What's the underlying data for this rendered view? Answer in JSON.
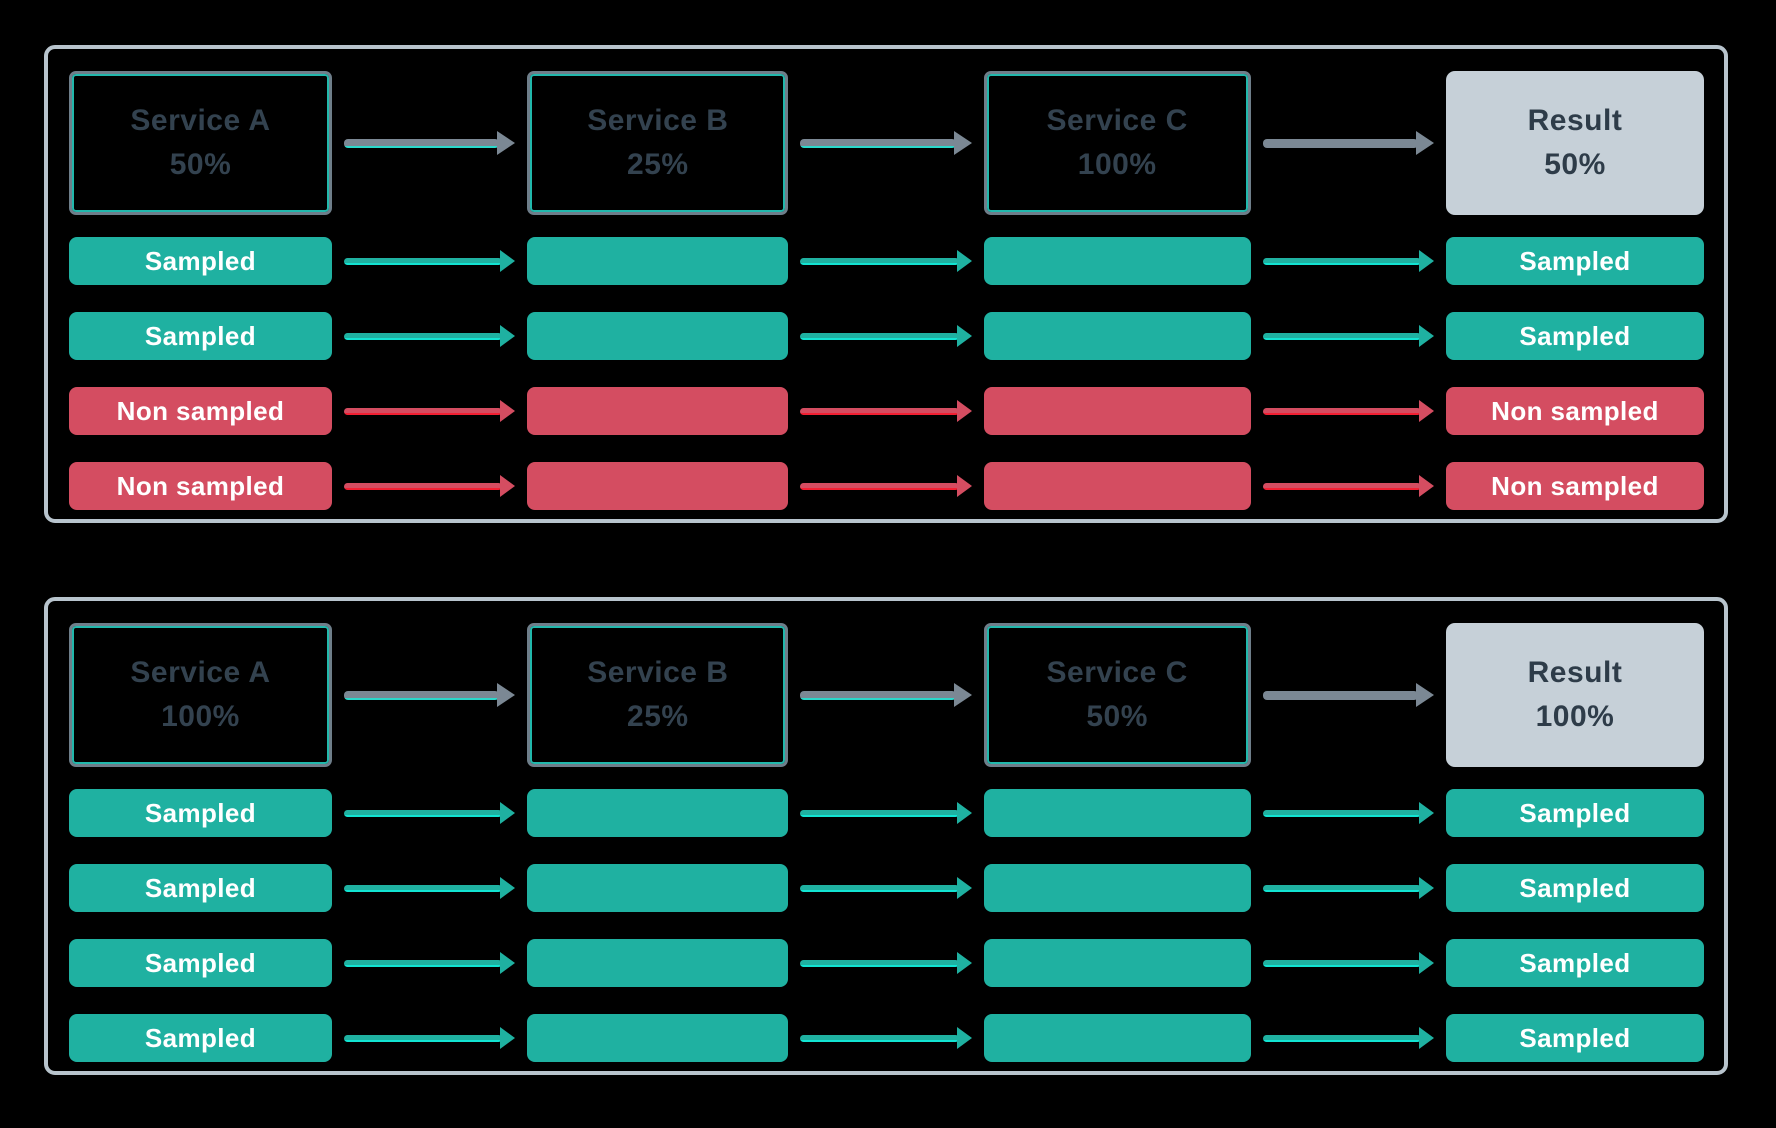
{
  "colors": {
    "background": "#000000",
    "panel_border": "#B8C4CD",
    "service_box_border": "#6E7E8A",
    "service_box_inner_accent": "#27D8CA",
    "service_text": "#33424F",
    "result_background": "#C6D0D8",
    "result_text": "#2E3C49",
    "sampled_teal": "#1FB1A1",
    "non_sampled_red": "#D44D61",
    "arrow_gray": "#7B8894",
    "teal_accent_line": "#12E4D2",
    "red_accent_line": "#F31F32",
    "pill_text": "#FFFFFF"
  },
  "panels": [
    {
      "services": [
        {
          "title": "Service A",
          "rate": "50%"
        },
        {
          "title": "Service B",
          "rate": "25%"
        },
        {
          "title": "Service C",
          "rate": "100%"
        }
      ],
      "result": {
        "title": "Result",
        "rate": "50%"
      },
      "rows": [
        {
          "type": "sampled",
          "left_label": "Sampled",
          "right_label": "Sampled"
        },
        {
          "type": "sampled",
          "left_label": "Sampled",
          "right_label": "Sampled"
        },
        {
          "type": "non-sampled",
          "left_label": "Non sampled",
          "right_label": "Non sampled"
        },
        {
          "type": "non-sampled",
          "left_label": "Non sampled",
          "right_label": "Non sampled"
        }
      ]
    },
    {
      "services": [
        {
          "title": "Service A",
          "rate": "100%"
        },
        {
          "title": "Service B",
          "rate": "25%"
        },
        {
          "title": "Service C",
          "rate": "50%"
        }
      ],
      "result": {
        "title": "Result",
        "rate": "100%"
      },
      "rows": [
        {
          "type": "sampled",
          "left_label": "Sampled",
          "right_label": "Sampled"
        },
        {
          "type": "sampled",
          "left_label": "Sampled",
          "right_label": "Sampled"
        },
        {
          "type": "sampled",
          "left_label": "Sampled",
          "right_label": "Sampled"
        },
        {
          "type": "sampled",
          "left_label": "Sampled",
          "right_label": "Sampled"
        }
      ]
    }
  ]
}
